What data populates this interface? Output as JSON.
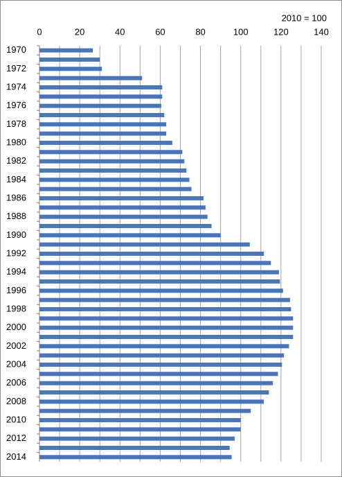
{
  "chart_data": {
    "type": "bar",
    "orientation": "horizontal",
    "annotation": "2010 = 100",
    "categories": [
      "1970",
      null,
      "1972",
      null,
      "1974",
      null,
      "1976",
      null,
      "1978",
      null,
      "1980",
      null,
      "1982",
      null,
      "1984",
      null,
      "1986",
      null,
      "1988",
      null,
      "1990",
      null,
      "1992",
      null,
      "1994",
      null,
      "1996",
      null,
      "1998",
      null,
      "2000",
      null,
      "2002",
      null,
      "2004",
      null,
      "2006",
      null,
      "2008",
      null,
      "2010",
      null,
      "2012",
      null,
      "2014"
    ],
    "values": [
      26.5,
      30,
      31,
      51,
      61,
      61,
      60.5,
      62,
      63,
      63,
      66,
      71,
      72,
      73,
      74.5,
      75.5,
      81.5,
      82.5,
      83.5,
      85.5,
      90,
      104.5,
      111.5,
      115,
      119,
      119.5,
      121,
      124.5,
      125,
      126,
      126,
      126,
      124,
      121.5,
      120.5,
      118.5,
      116,
      114,
      111.5,
      105,
      100,
      100,
      97,
      94.5,
      95.5
    ],
    "color": "#4a76b8",
    "xlim": [
      0,
      140
    ],
    "xticks": [
      0,
      20,
      40,
      60,
      80,
      100,
      120,
      140
    ],
    "minor_xticks": [
      10,
      30,
      50,
      70,
      90,
      110,
      130
    ],
    "grid": true
  }
}
